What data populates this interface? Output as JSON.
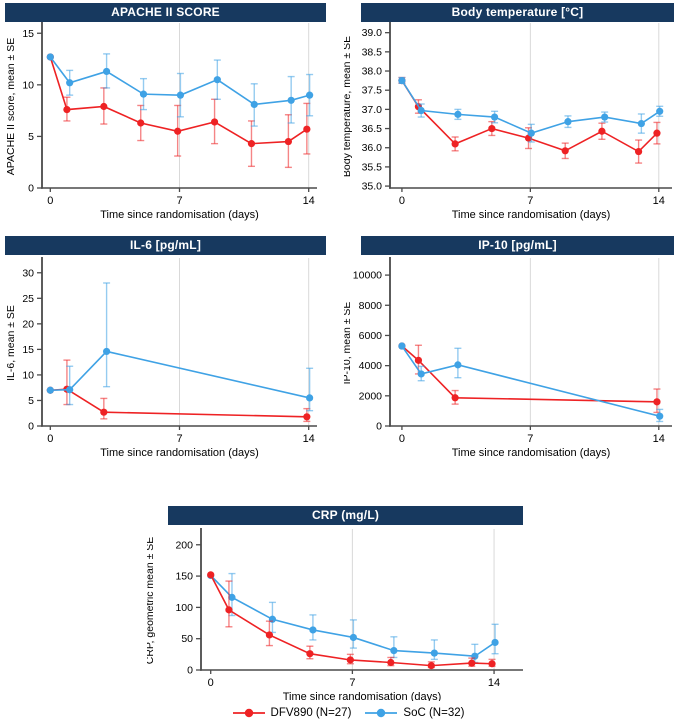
{
  "colors": {
    "title_bar": "#17395f",
    "title_text": "#ffffff",
    "red": "#ee2224",
    "blue": "#3fa2e5",
    "grid": "#d9d9d9",
    "axis": "#4a4a4a",
    "text": "#000000"
  },
  "xlabel": "Time since randomisation (days)",
  "legend": {
    "items": [
      {
        "label": "DFV890 (N=27)",
        "color_key": "red"
      },
      {
        "label": "SoC (N=32)",
        "color_key": "blue"
      }
    ]
  },
  "chart_data": [
    {
      "id": "apache",
      "type": "line",
      "title": "APACHE II SCORE",
      "ylabel": "APACHE II score, mean ± SE",
      "x_ticks": [
        0,
        7,
        14
      ],
      "grid_x": [
        7,
        14
      ],
      "ylim": [
        0,
        15.8
      ],
      "y_ticks": [
        0,
        5,
        10,
        15
      ],
      "y_tick_decimals": 0,
      "series": [
        {
          "name": "DFV890 (N=27)",
          "color_key": "red",
          "points": [
            {
              "x": 0,
              "y": 12.7
            },
            {
              "x": 1,
              "y": 7.6,
              "lo": 6.5,
              "hi": 8.8
            },
            {
              "x": 3,
              "y": 7.9,
              "lo": 6.2,
              "hi": 9.7
            },
            {
              "x": 5,
              "y": 6.3,
              "lo": 4.6,
              "hi": 8.0
            },
            {
              "x": 7,
              "y": 5.5,
              "lo": 3.1,
              "hi": 8.0
            },
            {
              "x": 9,
              "y": 6.4,
              "lo": 4.3,
              "hi": 8.6
            },
            {
              "x": 11,
              "y": 4.3,
              "lo": 2.1,
              "hi": 6.5
            },
            {
              "x": 13,
              "y": 4.5,
              "lo": 2.0,
              "hi": 7.1
            },
            {
              "x": 14,
              "y": 5.7,
              "lo": 3.3,
              "hi": 8.2
            }
          ]
        },
        {
          "name": "SoC (N=32)",
          "color_key": "blue",
          "points": [
            {
              "x": 0,
              "y": 12.7
            },
            {
              "x": 1,
              "y": 10.2,
              "lo": 9.0,
              "hi": 11.4
            },
            {
              "x": 3,
              "y": 11.3,
              "lo": 9.7,
              "hi": 13.0
            },
            {
              "x": 5,
              "y": 9.1,
              "lo": 7.6,
              "hi": 10.6
            },
            {
              "x": 7,
              "y": 9.0,
              "lo": 6.9,
              "hi": 11.1
            },
            {
              "x": 9,
              "y": 10.5,
              "lo": 8.6,
              "hi": 12.4
            },
            {
              "x": 11,
              "y": 8.1,
              "lo": 6.0,
              "hi": 10.1
            },
            {
              "x": 13,
              "y": 8.5,
              "lo": 6.3,
              "hi": 10.8
            },
            {
              "x": 14,
              "y": 9.0,
              "lo": 7.0,
              "hi": 11.0
            }
          ]
        }
      ]
    },
    {
      "id": "temp",
      "type": "line",
      "title": "Body temperature [°C]",
      "ylabel": "Body temperature, mean ± SE",
      "x_ticks": [
        0,
        7,
        14
      ],
      "grid_x": [
        7,
        14
      ],
      "ylim": [
        34.95,
        39.2
      ],
      "y_ticks": [
        35,
        35.5,
        36,
        36.5,
        37,
        37.5,
        38,
        38.5,
        39
      ],
      "y_tick_decimals": 1,
      "series": [
        {
          "name": "DFV890 (N=27)",
          "color_key": "red",
          "points": [
            {
              "x": 0,
              "y": 37.75,
              "lo": 37.68,
              "hi": 37.83
            },
            {
              "x": 1,
              "y": 37.07,
              "lo": 36.9,
              "hi": 37.25
            },
            {
              "x": 3,
              "y": 36.1,
              "lo": 35.92,
              "hi": 36.28
            },
            {
              "x": 5,
              "y": 36.5,
              "lo": 36.32,
              "hi": 36.68
            },
            {
              "x": 7,
              "y": 36.25,
              "lo": 35.98,
              "hi": 36.52
            },
            {
              "x": 9,
              "y": 35.92,
              "lo": 35.72,
              "hi": 36.12
            },
            {
              "x": 11,
              "y": 36.43,
              "lo": 36.22,
              "hi": 36.64
            },
            {
              "x": 13,
              "y": 35.9,
              "lo": 35.6,
              "hi": 36.2
            },
            {
              "x": 14,
              "y": 36.38,
              "lo": 36.1,
              "hi": 36.66
            }
          ]
        },
        {
          "name": "SoC (N=32)",
          "color_key": "blue",
          "points": [
            {
              "x": 0,
              "y": 37.75,
              "lo": 37.68,
              "hi": 37.83
            },
            {
              "x": 1,
              "y": 36.97,
              "lo": 36.8,
              "hi": 37.14
            },
            {
              "x": 3,
              "y": 36.87,
              "lo": 36.74,
              "hi": 37.0
            },
            {
              "x": 5,
              "y": 36.8,
              "lo": 36.65,
              "hi": 36.95
            },
            {
              "x": 7,
              "y": 36.38,
              "lo": 36.15,
              "hi": 36.61
            },
            {
              "x": 9,
              "y": 36.68,
              "lo": 36.53,
              "hi": 36.83
            },
            {
              "x": 11,
              "y": 36.8,
              "lo": 36.67,
              "hi": 36.93
            },
            {
              "x": 13,
              "y": 36.63,
              "lo": 36.38,
              "hi": 36.88
            },
            {
              "x": 14,
              "y": 36.95,
              "lo": 36.82,
              "hi": 37.08
            }
          ]
        }
      ]
    },
    {
      "id": "il6",
      "type": "line",
      "title": "IL-6 [pg/mL]",
      "ylabel": "IL-6, mean ± SE",
      "x_ticks": [
        0,
        7,
        14
      ],
      "grid_x": [
        7,
        14
      ],
      "ylim": [
        0,
        32.5
      ],
      "y_ticks": [
        0,
        5,
        10,
        15,
        20,
        25,
        30
      ],
      "y_tick_decimals": 0,
      "series": [
        {
          "name": "DFV890 (N=27)",
          "color_key": "red",
          "points": [
            {
              "x": 0,
              "y": 7.0
            },
            {
              "x": 1,
              "y": 7.2,
              "lo": 4.2,
              "hi": 12.9
            },
            {
              "x": 3,
              "y": 2.7,
              "lo": 1.4,
              "hi": 5.4
            },
            {
              "x": 14,
              "y": 1.8,
              "lo": 0.9,
              "hi": 3.4
            }
          ]
        },
        {
          "name": "SoC (N=32)",
          "color_key": "blue",
          "points": [
            {
              "x": 0,
              "y": 7.0
            },
            {
              "x": 1,
              "y": 7.1,
              "lo": 4.2,
              "hi": 11.7
            },
            {
              "x": 3,
              "y": 14.6,
              "lo": 7.7,
              "hi": 28.0
            },
            {
              "x": 14,
              "y": 5.5,
              "lo": 3.0,
              "hi": 11.3
            }
          ]
        }
      ]
    },
    {
      "id": "ip10",
      "type": "line",
      "title": "IP-10 [pg/mL]",
      "ylabel": "IP-10, mean ± SE",
      "x_ticks": [
        0,
        7,
        14
      ],
      "grid_x": [
        7,
        14
      ],
      "ylim": [
        0,
        11000
      ],
      "y_ticks": [
        0,
        2000,
        4000,
        6000,
        8000,
        10000
      ],
      "y_tick_decimals": 0,
      "series": [
        {
          "name": "DFV890 (N=27)",
          "color_key": "red",
          "points": [
            {
              "x": 0,
              "y": 5300
            },
            {
              "x": 1,
              "y": 4350,
              "lo": 3450,
              "hi": 5350
            },
            {
              "x": 3,
              "y": 1870,
              "lo": 1450,
              "hi": 2350
            },
            {
              "x": 14,
              "y": 1600,
              "lo": 900,
              "hi": 2450
            }
          ]
        },
        {
          "name": "SoC (N=32)",
          "color_key": "blue",
          "points": [
            {
              "x": 0,
              "y": 5300
            },
            {
              "x": 1,
              "y": 3450,
              "lo": 3000,
              "hi": 3950
            },
            {
              "x": 3,
              "y": 4050,
              "lo": 3200,
              "hi": 5150
            },
            {
              "x": 14,
              "y": 650,
              "lo": 300,
              "hi": 1100
            }
          ]
        }
      ]
    },
    {
      "id": "crp",
      "type": "line",
      "title": "CRP (mg/L)",
      "ylabel": "CRP, geometric mean ± SE",
      "x_ticks": [
        0,
        7,
        14
      ],
      "grid_x": [
        7,
        14
      ],
      "ylim": [
        0,
        222
      ],
      "y_ticks": [
        0,
        50,
        100,
        150,
        200
      ],
      "y_tick_decimals": 0,
      "series": [
        {
          "name": "SoC (N=32)",
          "color_key": "blue",
          "points": [
            {
              "x": 0,
              "y": 151
            },
            {
              "x": 1,
              "y": 116,
              "lo": 87,
              "hi": 154
            },
            {
              "x": 3,
              "y": 81,
              "lo": 60,
              "hi": 108
            },
            {
              "x": 5,
              "y": 64,
              "lo": 48,
              "hi": 88
            },
            {
              "x": 7,
              "y": 52,
              "lo": 35,
              "hi": 80
            },
            {
              "x": 9,
              "y": 31,
              "lo": 20,
              "hi": 53
            },
            {
              "x": 11,
              "y": 27,
              "lo": 17,
              "hi": 48
            },
            {
              "x": 13,
              "y": 22,
              "lo": 12,
              "hi": 41
            },
            {
              "x": 14,
              "y": 44,
              "lo": 26,
              "hi": 73
            }
          ]
        },
        {
          "name": "DFV890 (N=27)",
          "color_key": "red",
          "points": [
            {
              "x": 0,
              "y": 152
            },
            {
              "x": 1,
              "y": 96,
              "lo": 69,
              "hi": 142
            },
            {
              "x": 3,
              "y": 56,
              "lo": 39,
              "hi": 78
            },
            {
              "x": 5,
              "y": 26,
              "lo": 18,
              "hi": 38
            },
            {
              "x": 7,
              "y": 16,
              "lo": 10,
              "hi": 25
            },
            {
              "x": 9,
              "y": 12,
              "lo": 7,
              "hi": 20
            },
            {
              "x": 11,
              "y": 7,
              "lo": 4,
              "hi": 13
            },
            {
              "x": 13,
              "y": 11,
              "lo": 6,
              "hi": 19
            },
            {
              "x": 14,
              "y": 10,
              "lo": 6,
              "hi": 17
            }
          ]
        }
      ]
    }
  ]
}
